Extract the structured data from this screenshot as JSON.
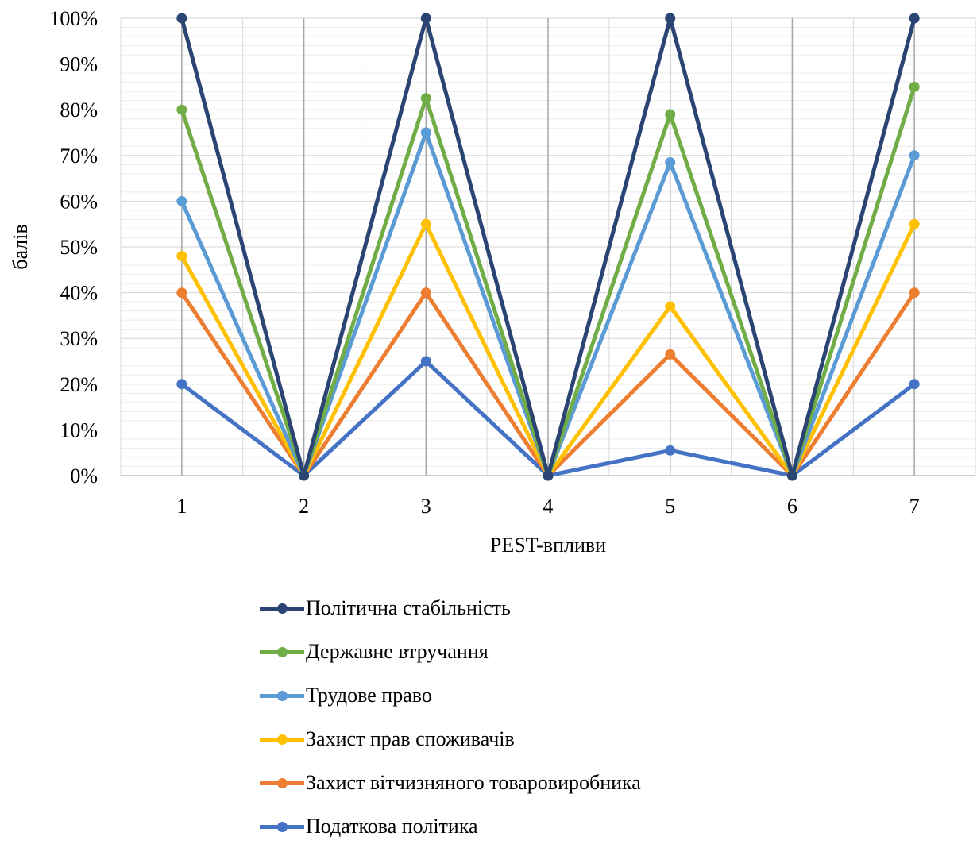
{
  "chart_data": {
    "type": "line",
    "xlabel": "PEST-впливи",
    "ylabel": "балів",
    "categories": [
      "1",
      "2",
      "3",
      "4",
      "5",
      "6",
      "7"
    ],
    "ylim": [
      0,
      100
    ],
    "yticks": [
      "0%",
      "10%",
      "20%",
      "30%",
      "40%",
      "50%",
      "60%",
      "70%",
      "80%",
      "90%",
      "100%"
    ],
    "grid": true,
    "legend_position": "bottom",
    "series": [
      {
        "name": "Політична стабільність",
        "color": "#2a4473",
        "values": [
          100,
          0,
          100,
          0,
          100,
          0,
          100
        ]
      },
      {
        "name": "Державне втручання",
        "color": "#70ad47",
        "values": [
          80,
          0,
          82.5,
          0,
          79,
          0,
          85
        ]
      },
      {
        "name": "Трудове право",
        "color": "#5b9bd5",
        "values": [
          60,
          0,
          75,
          0,
          68.5,
          0,
          70
        ]
      },
      {
        "name": "Захист прав споживачів",
        "color": "#ffc000",
        "values": [
          48,
          0,
          55,
          0,
          37,
          0,
          55
        ]
      },
      {
        "name": "Захист вітчизняного товаровиробника",
        "color": "#ed7d31",
        "values": [
          40,
          0,
          40,
          0,
          26.5,
          0,
          40
        ]
      },
      {
        "name": "Податкова політика",
        "color": "#4472c4",
        "values": [
          20,
          0,
          25,
          0,
          5.5,
          0,
          20
        ]
      }
    ]
  }
}
